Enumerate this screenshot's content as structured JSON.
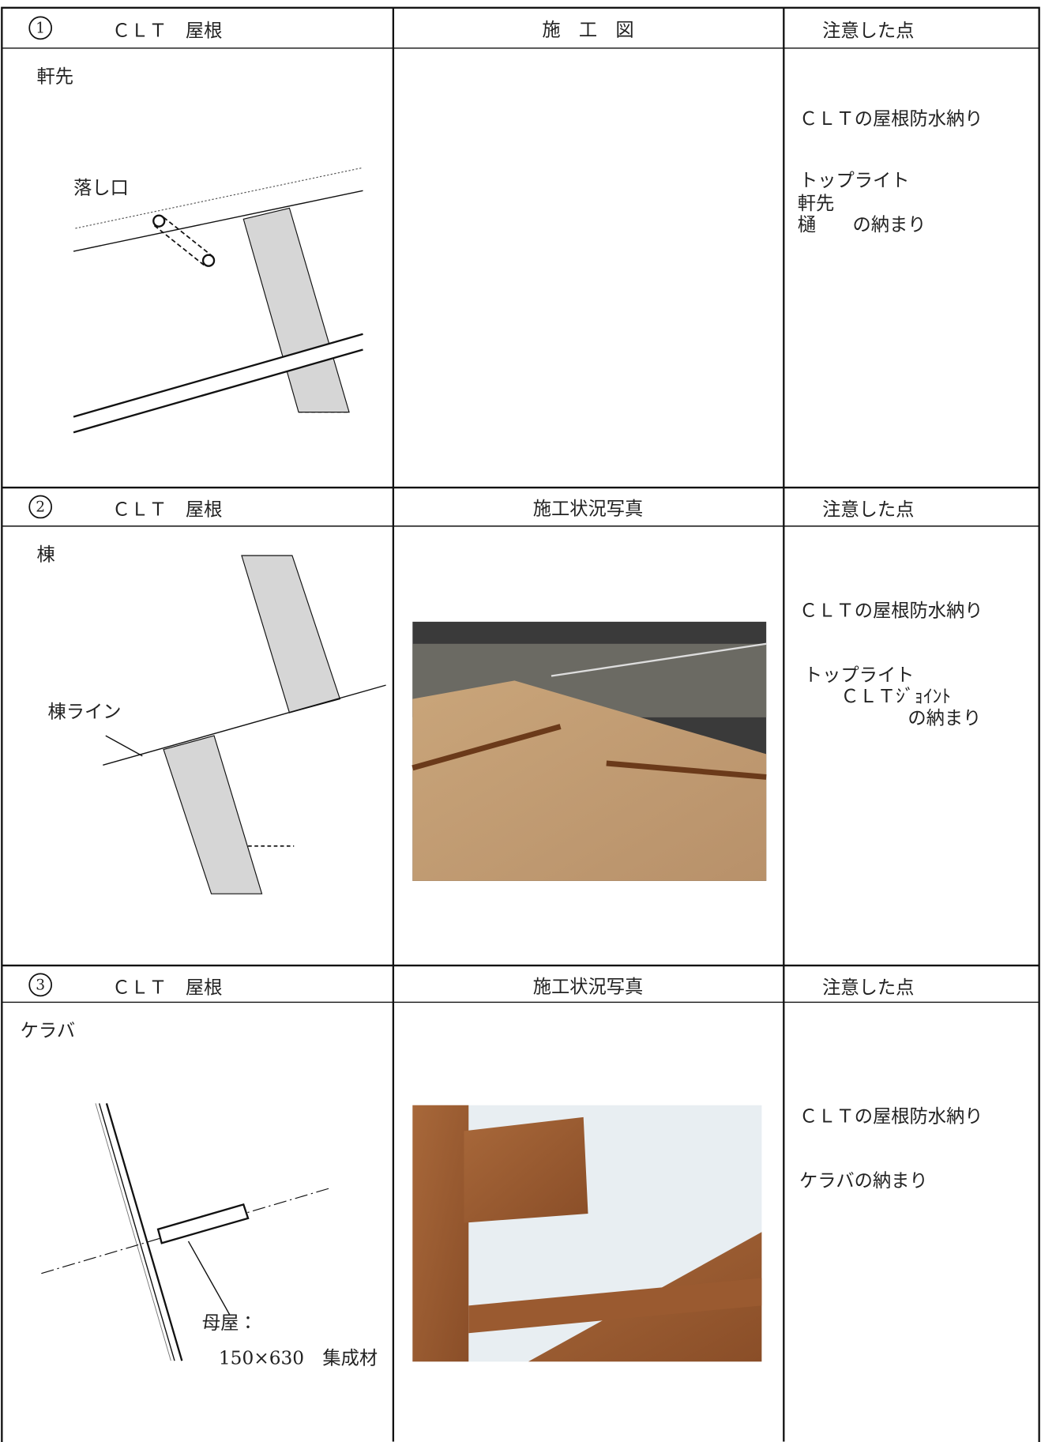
{
  "sections": [
    {
      "number": "1",
      "title": "ＣＬＴ　屋根",
      "middle_header": "施　工　図",
      "notes_header": "注意した点",
      "detail": "軒先",
      "labels": [
        "落し口"
      ],
      "notes": [
        "ＣＬＴの屋根防水納り",
        "トップライト",
        "軒先",
        "樋　　の納まり"
      ]
    },
    {
      "number": "2",
      "title": "ＣＬＴ　屋根",
      "middle_header": "施工状況写真",
      "notes_header": "注意した点",
      "detail": "棟",
      "labels": [
        "棟ライン"
      ],
      "notes": [
        "ＣＬＴの屋根防水納り",
        "トップライト",
        "ＣＬＴｼﾞｮｲﾝﾄ",
        "の納まり"
      ]
    },
    {
      "number": "3",
      "title": "ＣＬＴ　屋根",
      "middle_header": "施工状況写真",
      "notes_header": "注意した点",
      "detail": "ケラバ",
      "labels": [
        "母屋：",
        "150×630　集成材"
      ],
      "notes": [
        "ＣＬＴの屋根防水納り",
        "ケラバの納まり"
      ]
    }
  ]
}
